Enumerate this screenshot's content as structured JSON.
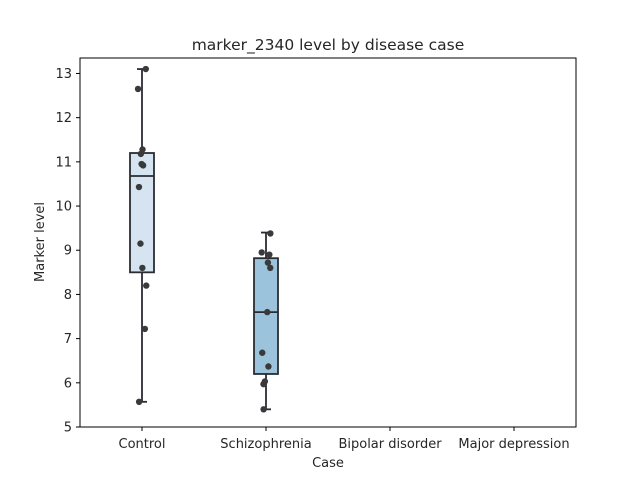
{
  "chart_data": {
    "type": "box",
    "title": "marker_2340 level by disease case",
    "xlabel": "Case",
    "ylabel": "Marker level",
    "categories": [
      "Control",
      "Schizophrenia",
      "Bipolar disorder",
      "Major depression"
    ],
    "ylim": [
      5,
      13.35
    ],
    "yticks": [
      5,
      6,
      7,
      8,
      9,
      10,
      11,
      12,
      13
    ],
    "grid": false,
    "legend": "none",
    "colors": {
      "box_fills": [
        "#d6e4f2",
        "#9bc3db"
      ],
      "box_edge": "#2b2b33",
      "points": "#3a3a3a",
      "axes": "#000000",
      "background": "#ffffff"
    },
    "boxes": [
      {
        "category": "Control",
        "whisker_low": 5.57,
        "q1": 8.5,
        "median": 10.68,
        "q3": 11.2,
        "whisker_high": 13.1
      },
      {
        "category": "Schizophrenia",
        "whisker_low": 5.4,
        "q1": 6.2,
        "median": 7.6,
        "q3": 8.82,
        "whisker_high": 9.4
      }
    ],
    "points": [
      {
        "category": "Control",
        "values": [
          13.1,
          12.65,
          11.28,
          11.18,
          10.95,
          10.92,
          10.43,
          9.15,
          8.6,
          8.2,
          7.22,
          5.57
        ]
      },
      {
        "category": "Schizophrenia",
        "values": [
          9.38,
          8.95,
          8.9,
          8.72,
          8.6,
          7.6,
          6.68,
          6.37,
          6.03,
          5.97,
          5.4
        ]
      }
    ]
  }
}
